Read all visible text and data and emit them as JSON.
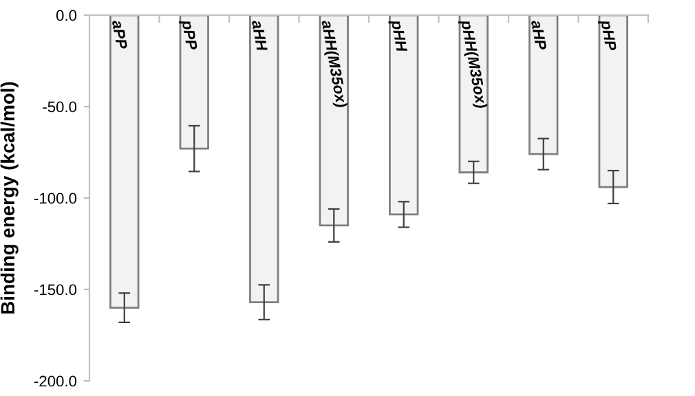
{
  "chart_data": {
    "type": "bar",
    "ylabel": "Binding energy (kcal/mol)",
    "categories": [
      "aPP",
      "pPP",
      "aHH",
      "aHH(M35ox)",
      "pHH",
      "pHH(M35ox)",
      "aHP",
      "pHP"
    ],
    "values": [
      -160,
      -73,
      -157,
      -115,
      -109,
      -86,
      -76,
      -94
    ],
    "errors": [
      8,
      12.5,
      9.5,
      9,
      7,
      6,
      8.5,
      9
    ],
    "color": "#f2f2f2",
    "ylim": [
      -200,
      0
    ],
    "yticks": [
      {
        "value": -200,
        "label": "-200.0"
      },
      {
        "value": -150,
        "label": "-150.0"
      },
      {
        "value": -100,
        "label": "-100.0"
      },
      {
        "value": -50,
        "label": "-50.0"
      },
      {
        "value": 0,
        "label": "0.0"
      }
    ],
    "grid": false
  }
}
